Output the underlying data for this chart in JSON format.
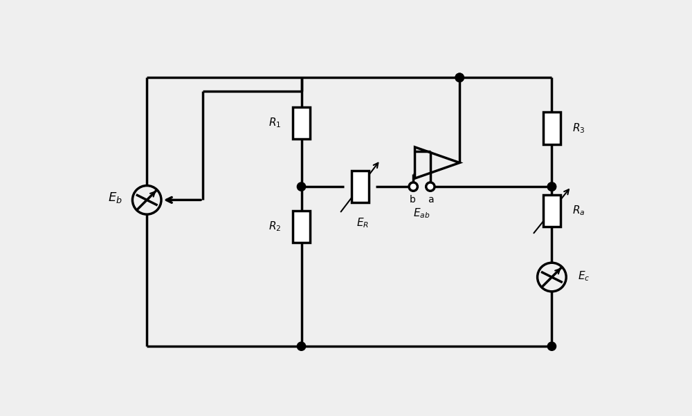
{
  "bg": "#efefef",
  "lc": "#000000",
  "lw": 2.5,
  "fw": 10.0,
  "fh": 6.02,
  "xl": 1.1,
  "xm": 4.0,
  "xr": 8.7,
  "ytop": 5.5,
  "ybot": 0.45,
  "ymid": 3.45,
  "yamp": 3.9,
  "yjr": 3.45,
  "yeb": 3.2,
  "yec": 1.75,
  "xamp": 6.55,
  "xer": 5.1,
  "R1_label": "$R_1$",
  "R2_label": "$R_2$",
  "R3_label": "$R_3$",
  "Ra_label": "$R_a$",
  "Eb_label": "$E_b$",
  "Ec_label": "$E_c$",
  "ER_label": "$E_R$",
  "Eab_label": "$E_{ab}$",
  "a_label": "a",
  "b_label": "b"
}
